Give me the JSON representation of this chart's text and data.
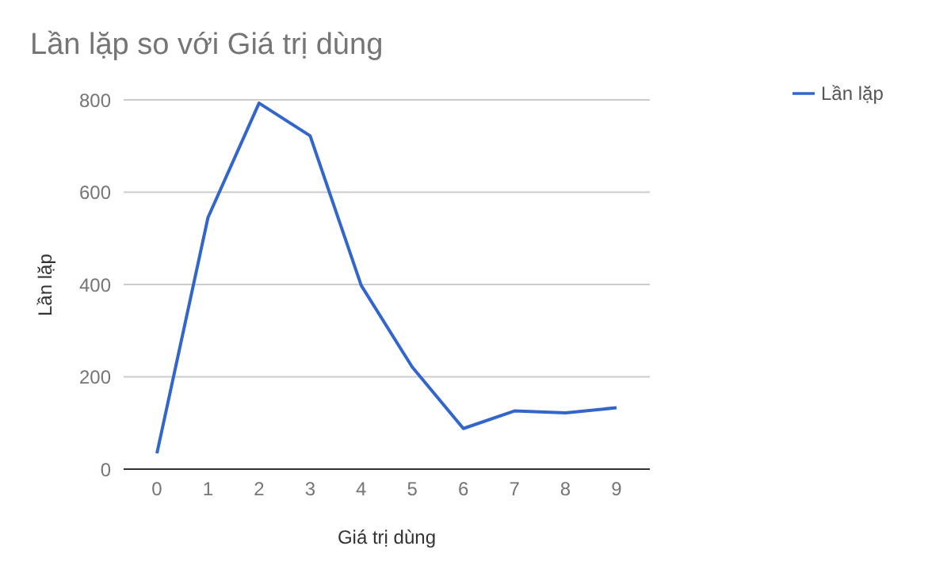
{
  "chart_data": {
    "type": "line",
    "title": "Lần lặp so với Giá trị dùng",
    "xlabel": "Giá trị dùng",
    "ylabel": "Lần lặp",
    "categories": [
      "0",
      "1",
      "2",
      "3",
      "4",
      "5",
      "6",
      "7",
      "8",
      "9"
    ],
    "series": [
      {
        "name": "Lần lặp",
        "color": "#3366cc",
        "values": [
          34,
          545,
          793,
          722,
          398,
          221,
          88,
          126,
          122,
          133
        ]
      }
    ],
    "ylim": [
      0,
      800
    ],
    "yticks": [
      0,
      200,
      400,
      600,
      800
    ],
    "grid": "y",
    "legend": "right",
    "marker": "none",
    "line_style": "solid"
  }
}
